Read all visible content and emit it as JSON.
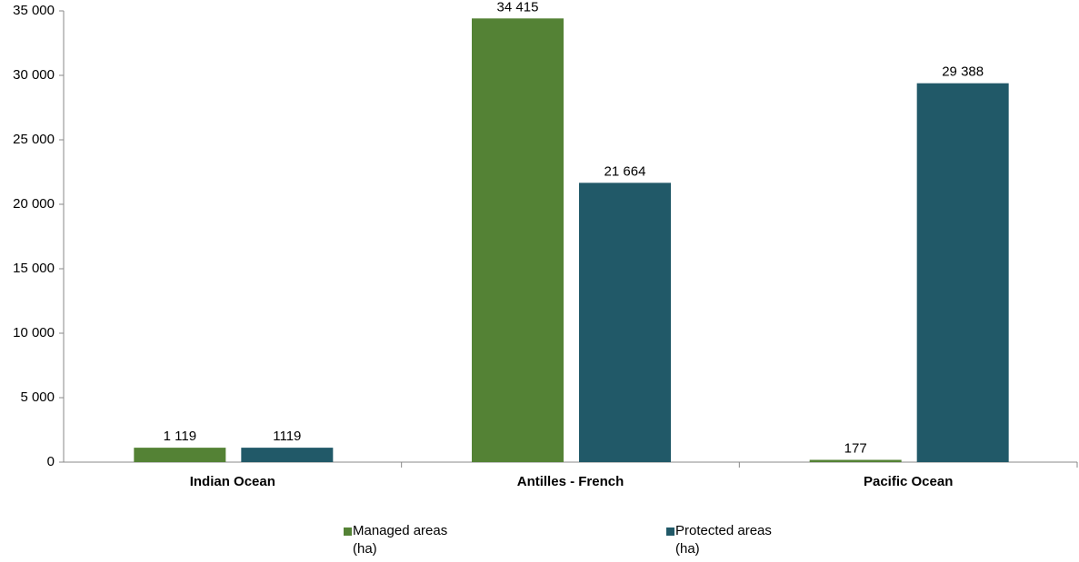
{
  "chart_data": {
    "type": "bar",
    "categories": [
      "Indian Ocean",
      "Antilles - French",
      "Pacific Ocean"
    ],
    "series": [
      {
        "name": "Managed areas (ha)",
        "color": "#548235",
        "values": [
          1119,
          34415,
          177
        ],
        "value_labels": [
          "1 119",
          "34 415",
          "177"
        ]
      },
      {
        "name": "Protected areas (ha)",
        "color": "#215968",
        "values": [
          1119,
          21664,
          29388
        ],
        "value_labels": [
          "1119",
          "21 664",
          "29 388"
        ]
      }
    ],
    "ylim": [
      0,
      35000
    ],
    "yticks": [
      0,
      {
        "value": 5000,
        "label": "5 000"
      },
      {
        "value": 10000,
        "label": "10 000"
      },
      {
        "value": 15000,
        "label": "15 000"
      },
      {
        "value": 20000,
        "label": "20 000"
      },
      {
        "value": 25000,
        "label": "25 000"
      },
      {
        "value": 30000,
        "label": "30 000"
      },
      {
        "value": 35000,
        "label": "35 000"
      }
    ],
    "legend": "bottom"
  }
}
